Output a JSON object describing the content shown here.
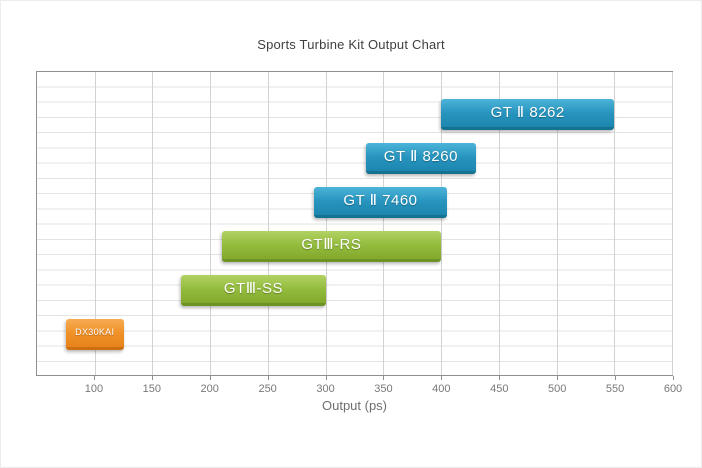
{
  "chart_data": {
    "type": "bar",
    "orientation": "horizontal",
    "title": "Sports Turbine Kit Output Chart",
    "xlabel": "Output (ps)",
    "xlim": [
      50,
      600
    ],
    "xticks": [
      100,
      150,
      200,
      250,
      300,
      350,
      400,
      450,
      500,
      550,
      600
    ],
    "grid": true,
    "legend": false,
    "bars": [
      {
        "label": "GT Ⅱ 8262",
        "start": 400,
        "end": 550,
        "row": 0,
        "color": "blue"
      },
      {
        "label": "GT Ⅱ 8260",
        "start": 335,
        "end": 430,
        "row": 1,
        "color": "blue"
      },
      {
        "label": "GT Ⅱ 7460",
        "start": 290,
        "end": 405,
        "row": 2,
        "color": "blue"
      },
      {
        "label": "GTⅢ-RS",
        "start": 210,
        "end": 400,
        "row": 3,
        "color": "green"
      },
      {
        "label": "GTⅢ-SS",
        "start": 175,
        "end": 300,
        "row": 4,
        "color": "green"
      },
      {
        "label": "DX30KAI",
        "start": 75,
        "end": 125,
        "row": 5,
        "color": "orange",
        "small": true
      }
    ],
    "palette": {
      "blue": {
        "stops": [
          "#4db3d8",
          "#2795bf",
          "#1d86af"
        ],
        "edge": "#14718f"
      },
      "green": {
        "stops": [
          "#b2d264",
          "#93bc3d",
          "#83a92c"
        ],
        "edge": "#6d9226"
      },
      "orange": {
        "stops": [
          "#f7ab52",
          "#f09228",
          "#e8831c"
        ],
        "edge": "#cc6f10"
      }
    }
  }
}
